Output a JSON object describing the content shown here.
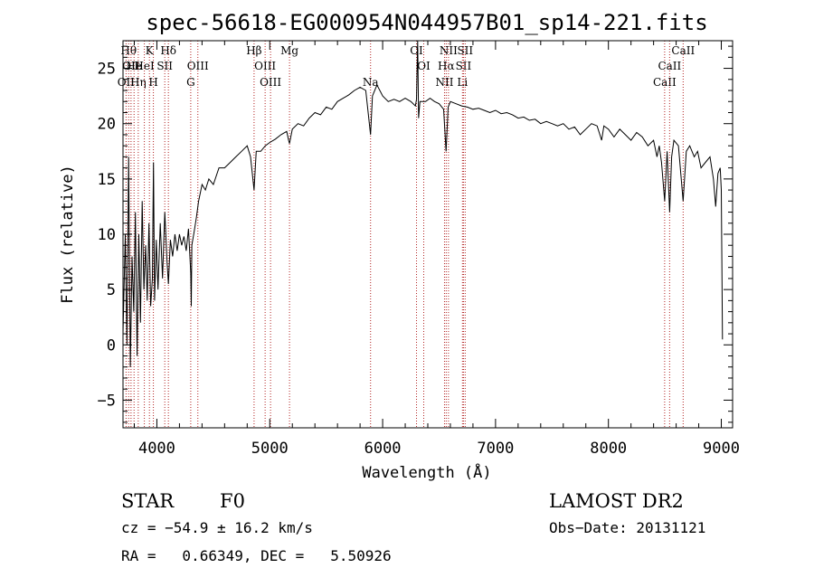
{
  "chart_data": {
    "type": "line",
    "title": "spec-56618-EG000954N044957B01_sp14-221.fits",
    "xlabel": "Wavelength (Å)",
    "ylabel": "Flux (relative)",
    "xlim": [
      3700,
      9100
    ],
    "ylim": [
      -7.5,
      27.5
    ],
    "xticks": [
      4000,
      5000,
      6000,
      7000,
      8000,
      9000
    ],
    "yticks": [
      -5,
      0,
      5,
      10,
      15,
      20,
      25
    ],
    "grid": false,
    "series": [
      {
        "points": [
          [
            3700,
            1.0
          ],
          [
            3720,
            10.0
          ],
          [
            3735,
            0.0
          ],
          [
            3750,
            17.0
          ],
          [
            3765,
            -2.0
          ],
          [
            3780,
            8.0
          ],
          [
            3795,
            3.0
          ],
          [
            3810,
            12.0
          ],
          [
            3825,
            -1.0
          ],
          [
            3840,
            10.0
          ],
          [
            3855,
            2.0
          ],
          [
            3870,
            13.0
          ],
          [
            3885,
            5.0
          ],
          [
            3900,
            9.0
          ],
          [
            3915,
            4.0
          ],
          [
            3930,
            11.0
          ],
          [
            3945,
            3.5
          ],
          [
            3960,
            6.0
          ],
          [
            3970,
            16.5
          ],
          [
            3980,
            4.0
          ],
          [
            3995,
            9.5
          ],
          [
            4010,
            5.0
          ],
          [
            4030,
            11.0
          ],
          [
            4050,
            6.0
          ],
          [
            4070,
            12.0
          ],
          [
            4090,
            7.5
          ],
          [
            4102,
            5.5
          ],
          [
            4120,
            9.5
          ],
          [
            4140,
            8.0
          ],
          [
            4160,
            10.0
          ],
          [
            4180,
            8.5
          ],
          [
            4200,
            10.0
          ],
          [
            4220,
            9.0
          ],
          [
            4240,
            9.8
          ],
          [
            4260,
            8.5
          ],
          [
            4280,
            10.5
          ],
          [
            4300,
            6.5
          ],
          [
            4305,
            3.5
          ],
          [
            4310,
            9.0
          ],
          [
            4330,
            10.2
          ],
          [
            4350,
            11.5
          ],
          [
            4370,
            13.0
          ],
          [
            4400,
            14.5
          ],
          [
            4430,
            14.0
          ],
          [
            4460,
            15.0
          ],
          [
            4500,
            14.5
          ],
          [
            4550,
            16.0
          ],
          [
            4600,
            16.0
          ],
          [
            4650,
            16.5
          ],
          [
            4700,
            17.0
          ],
          [
            4750,
            17.5
          ],
          [
            4800,
            18.0
          ],
          [
            4830,
            17.0
          ],
          [
            4861,
            14.0
          ],
          [
            4880,
            17.5
          ],
          [
            4920,
            17.5
          ],
          [
            4960,
            18.0
          ],
          [
            5000,
            18.3
          ],
          [
            5050,
            18.6
          ],
          [
            5100,
            19.0
          ],
          [
            5150,
            19.3
          ],
          [
            5167,
            18.5
          ],
          [
            5175,
            18.2
          ],
          [
            5200,
            19.5
          ],
          [
            5250,
            20.0
          ],
          [
            5300,
            19.8
          ],
          [
            5350,
            20.5
          ],
          [
            5400,
            21.0
          ],
          [
            5450,
            20.8
          ],
          [
            5500,
            21.5
          ],
          [
            5550,
            21.3
          ],
          [
            5600,
            22.0
          ],
          [
            5650,
            22.3
          ],
          [
            5700,
            22.6
          ],
          [
            5750,
            23.0
          ],
          [
            5800,
            23.3
          ],
          [
            5850,
            23.0
          ],
          [
            5893,
            19.0
          ],
          [
            5910,
            22.5
          ],
          [
            5950,
            23.5
          ],
          [
            6000,
            22.5
          ],
          [
            6050,
            22.0
          ],
          [
            6100,
            22.2
          ],
          [
            6150,
            22.0
          ],
          [
            6200,
            22.3
          ],
          [
            6250,
            22.0
          ],
          [
            6290,
            21.6
          ],
          [
            6300,
            22.2
          ],
          [
            6310,
            27.5
          ],
          [
            6318,
            20.5
          ],
          [
            6330,
            22.0
          ],
          [
            6380,
            22.0
          ],
          [
            6420,
            22.3
          ],
          [
            6460,
            22.0
          ],
          [
            6500,
            21.8
          ],
          [
            6540,
            21.3
          ],
          [
            6562,
            17.5
          ],
          [
            6580,
            21.5
          ],
          [
            6600,
            22.0
          ],
          [
            6650,
            21.8
          ],
          [
            6700,
            21.6
          ],
          [
            6750,
            21.5
          ],
          [
            6800,
            21.3
          ],
          [
            6850,
            21.4
          ],
          [
            6900,
            21.2
          ],
          [
            6950,
            21.0
          ],
          [
            7000,
            21.2
          ],
          [
            7050,
            20.9
          ],
          [
            7100,
            21.0
          ],
          [
            7150,
            20.8
          ],
          [
            7200,
            20.5
          ],
          [
            7250,
            20.6
          ],
          [
            7300,
            20.3
          ],
          [
            7350,
            20.4
          ],
          [
            7400,
            20.0
          ],
          [
            7450,
            20.2
          ],
          [
            7500,
            20.0
          ],
          [
            7550,
            19.8
          ],
          [
            7600,
            20.0
          ],
          [
            7650,
            19.5
          ],
          [
            7700,
            19.7
          ],
          [
            7750,
            19.0
          ],
          [
            7800,
            19.5
          ],
          [
            7850,
            20.0
          ],
          [
            7900,
            19.8
          ],
          [
            7940,
            18.5
          ],
          [
            7960,
            19.8
          ],
          [
            8000,
            19.5
          ],
          [
            8050,
            18.8
          ],
          [
            8100,
            19.5
          ],
          [
            8150,
            19.0
          ],
          [
            8200,
            18.5
          ],
          [
            8250,
            19.2
          ],
          [
            8300,
            18.8
          ],
          [
            8350,
            18.0
          ],
          [
            8400,
            18.5
          ],
          [
            8430,
            17.0
          ],
          [
            8450,
            18.0
          ],
          [
            8470,
            16.5
          ],
          [
            8498,
            13.0
          ],
          [
            8520,
            17.5
          ],
          [
            8542,
            12.0
          ],
          [
            8560,
            17.0
          ],
          [
            8580,
            18.5
          ],
          [
            8620,
            18.0
          ],
          [
            8662,
            13.0
          ],
          [
            8690,
            17.5
          ],
          [
            8720,
            18.0
          ],
          [
            8760,
            17.0
          ],
          [
            8790,
            17.5
          ],
          [
            8820,
            16.0
          ],
          [
            8860,
            16.5
          ],
          [
            8900,
            17.0
          ],
          [
            8930,
            15.0
          ],
          [
            8950,
            12.5
          ],
          [
            8970,
            15.5
          ],
          [
            8990,
            16.0
          ],
          [
            9000,
            14.0
          ],
          [
            9010,
            0.5
          ]
        ]
      }
    ],
    "lines": [
      {
        "x": 3750,
        "label": "Hθ",
        "row": 1
      },
      {
        "x": 3771,
        "label": "OII",
        "row": 2
      },
      {
        "x": 3798,
        "label": "He",
        "row": 2
      },
      {
        "x": 3727,
        "label": "OII",
        "row": 3
      },
      {
        "x": 3835,
        "label": "Hη",
        "row": 3
      },
      {
        "x": 3889,
        "label": "HeI",
        "row": 2
      },
      {
        "x": 3934,
        "label": "K",
        "row": 1
      },
      {
        "x": 3969,
        "label": "H",
        "row": 3
      },
      {
        "x": 4070,
        "label": "SII",
        "row": 2
      },
      {
        "x": 4102,
        "label": "Hδ",
        "row": 1
      },
      {
        "x": 4300,
        "label": "G",
        "row": 3
      },
      {
        "x": 4363,
        "label": "OIII",
        "row": 2
      },
      {
        "x": 4861,
        "label": "Hβ",
        "row": 1
      },
      {
        "x": 4959,
        "label": "OIII",
        "row": 2
      },
      {
        "x": 5007,
        "label": "OIII",
        "row": 3
      },
      {
        "x": 5175,
        "label": "Mg",
        "row": 1
      },
      {
        "x": 5893,
        "label": "Na",
        "row": 3
      },
      {
        "x": 6300,
        "label": "OI",
        "row": 1
      },
      {
        "x": 6364,
        "label": "OI",
        "row": 2
      },
      {
        "x": 6548,
        "label": "NII",
        "row": 3
      },
      {
        "x": 6563,
        "label": "Hα",
        "row": 2
      },
      {
        "x": 6583,
        "label": "NII",
        "row": 1
      },
      {
        "x": 6707,
        "label": "Li",
        "row": 3
      },
      {
        "x": 6716,
        "label": "SII",
        "row": 2
      },
      {
        "x": 6731,
        "label": "SII",
        "row": 1
      },
      {
        "x": 8498,
        "label": "CaII",
        "row": 3
      },
      {
        "x": 8542,
        "label": "CaII",
        "row": 2
      },
      {
        "x": 8662,
        "label": "CaII",
        "row": 1
      }
    ]
  },
  "info": {
    "class": "STAR",
    "subclass": "F0",
    "survey": "LAMOST DR2",
    "cz": "cz = −54.9 ± 16.2 km/s",
    "obs_date": "Obs−Date: 20131121",
    "coords": "RA =   0.66349, DEC =   5.50926"
  },
  "colors": {
    "axis": "#000000",
    "spectrum": "#000000",
    "line_marker": "#b22222"
  }
}
